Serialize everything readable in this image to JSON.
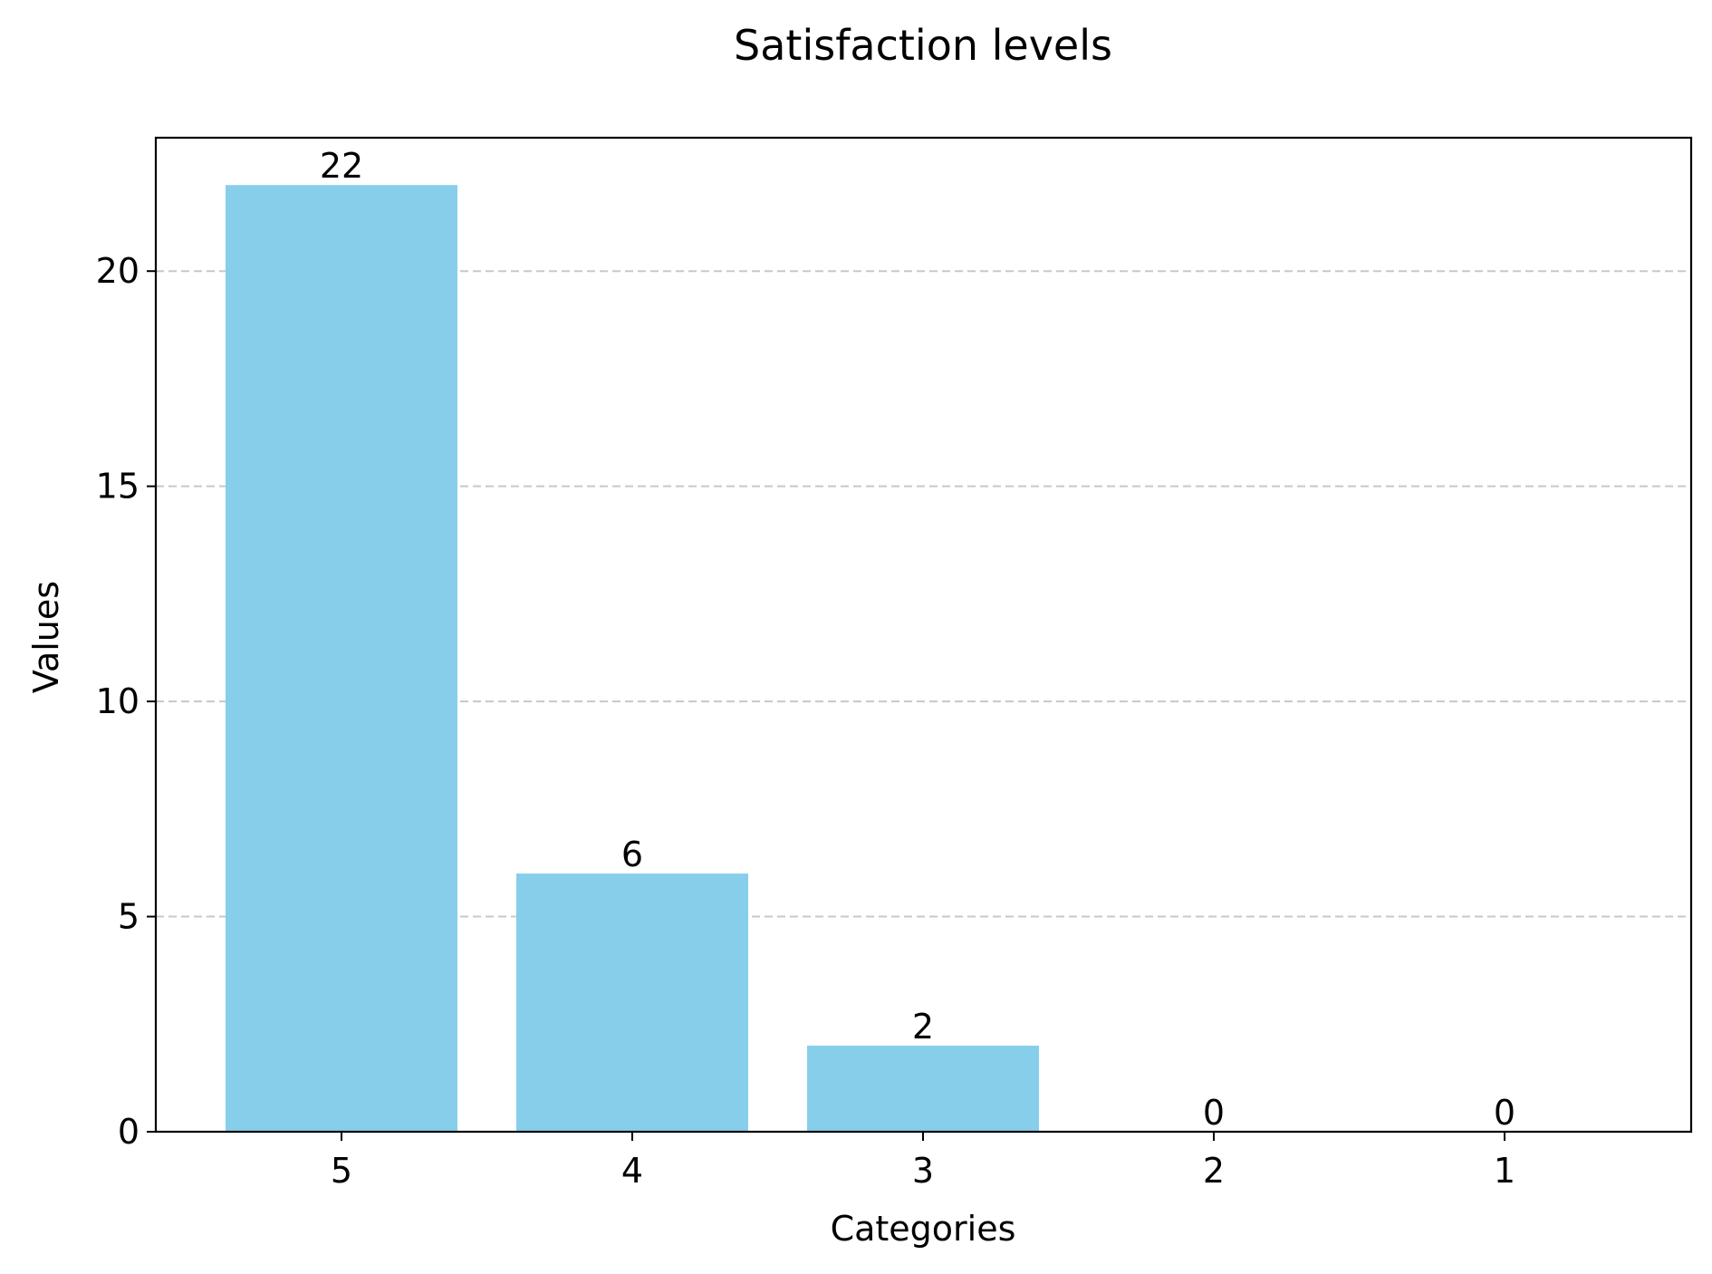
{
  "chart_data": {
    "type": "bar",
    "title": "Satisfaction levels",
    "xlabel": "Categories",
    "ylabel": "Values",
    "categories": [
      "5",
      "4",
      "3",
      "2",
      "1"
    ],
    "values": [
      22,
      6,
      2,
      0,
      0
    ],
    "data_labels": [
      "22",
      "6",
      "2",
      "0",
      "0"
    ],
    "ylim": [
      0,
      23.1
    ],
    "yticks": [
      0,
      5,
      10,
      15,
      20
    ],
    "grid": "y-dashed",
    "legend": "none",
    "bar_color": "#87CEEB"
  }
}
